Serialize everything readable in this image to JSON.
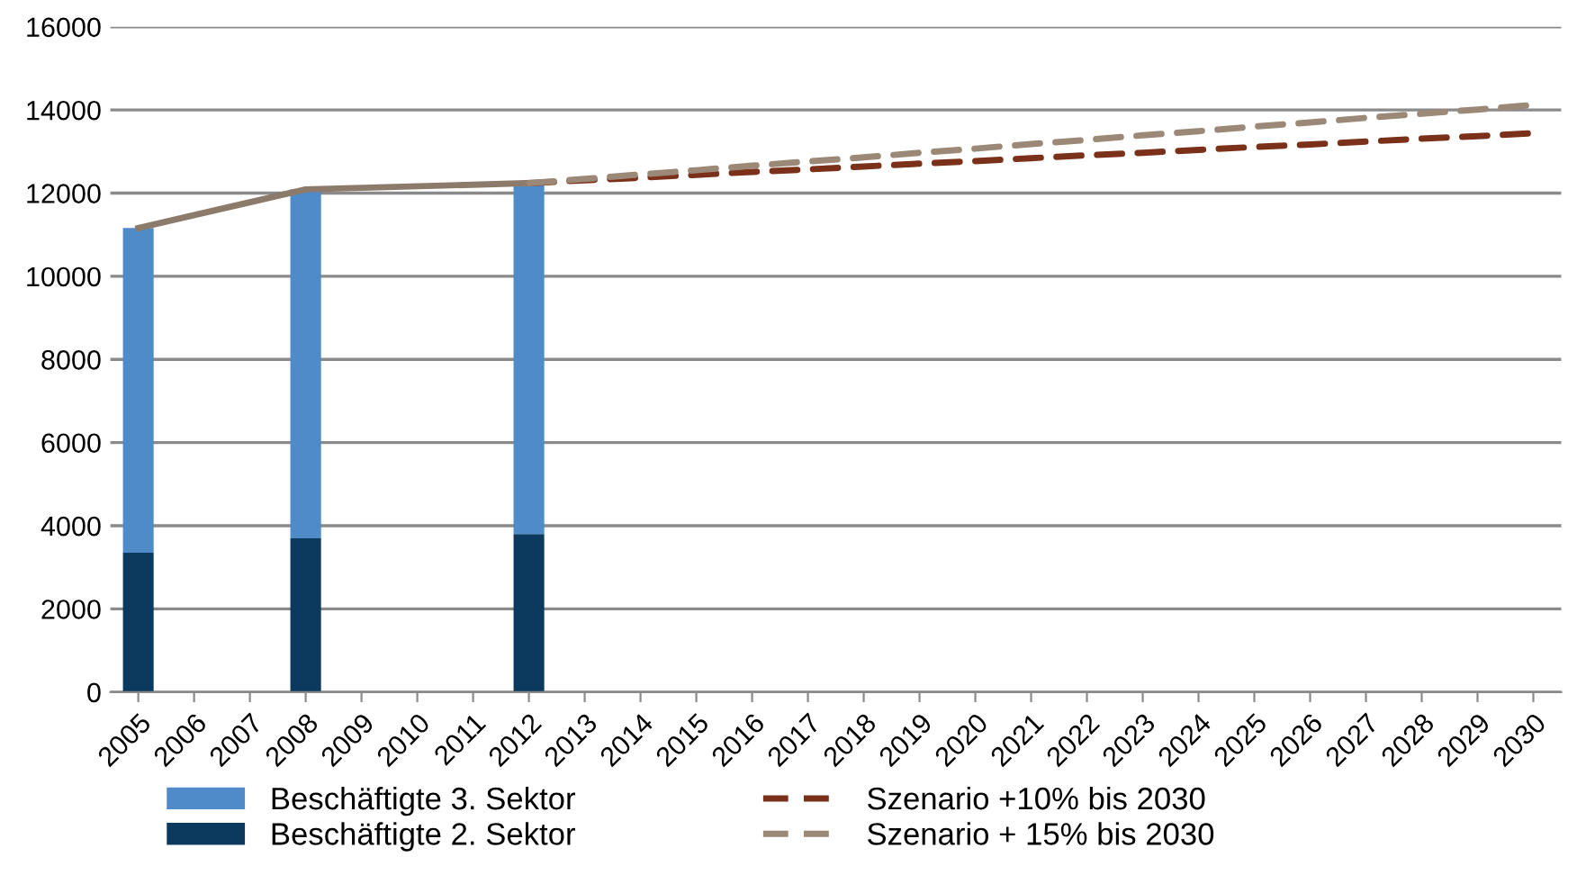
{
  "chart_data": {
    "type": "bar",
    "stacked": true,
    "categories": [
      "2005",
      "2006",
      "2007",
      "2008",
      "2009",
      "2010",
      "2011",
      "2012",
      "2013",
      "2014",
      "2015",
      "2016",
      "2017",
      "2018",
      "2019",
      "2020",
      "2021",
      "2022",
      "2023",
      "2024",
      "2025",
      "2026",
      "2027",
      "2028",
      "2029",
      "2030"
    ],
    "series": [
      {
        "name": "Beschäftigte 2. Sektor",
        "color": "#0b3a5e",
        "values": [
          3350,
          null,
          null,
          3700,
          null,
          null,
          null,
          3800,
          null,
          null,
          null,
          null,
          null,
          null,
          null,
          null,
          null,
          null,
          null,
          null,
          null,
          null,
          null,
          null,
          null,
          null
        ]
      },
      {
        "name": "Beschäftigte 3. Sektor",
        "color": "#4f8ac9",
        "values": [
          7810,
          null,
          null,
          8390,
          null,
          null,
          null,
          8440,
          null,
          null,
          null,
          null,
          null,
          null,
          null,
          null,
          null,
          null,
          null,
          null,
          null,
          null,
          null,
          null,
          null,
          null
        ]
      },
      {
        "type": "line",
        "color": "#8c7b6b",
        "line_style": "solid",
        "values": [
          11160,
          null,
          null,
          12090,
          null,
          null,
          null,
          12240,
          null,
          null,
          null,
          null,
          null,
          null,
          null,
          null,
          null,
          null,
          null,
          null,
          null,
          null,
          null,
          null,
          null,
          null
        ]
      },
      {
        "type": "line",
        "name": "Szenario +10% bis 2030",
        "color": "#7b3119",
        "line_style": "dashed",
        "values": [
          null,
          null,
          null,
          null,
          null,
          null,
          null,
          12240,
          12310,
          12370,
          12440,
          12510,
          12570,
          12640,
          12710,
          12770,
          12840,
          12910,
          12970,
          13040,
          13110,
          13170,
          13240,
          13310,
          13370,
          13440
        ]
      },
      {
        "type": "line",
        "name": "Szenario + 15% bis 2030",
        "color": "#9c8876",
        "line_style": "dashed",
        "values": [
          null,
          null,
          null,
          null,
          null,
          null,
          null,
          12240,
          12340,
          12450,
          12550,
          12660,
          12760,
          12860,
          12970,
          13070,
          13180,
          13280,
          13390,
          13490,
          13600,
          13700,
          13810,
          13910,
          14010,
          14120
        ]
      }
    ],
    "ylim": [
      0,
      16000
    ],
    "yticks": [
      0,
      2000,
      4000,
      6000,
      8000,
      10000,
      12000,
      14000,
      16000
    ],
    "grid": "y",
    "legend": "bottom"
  }
}
